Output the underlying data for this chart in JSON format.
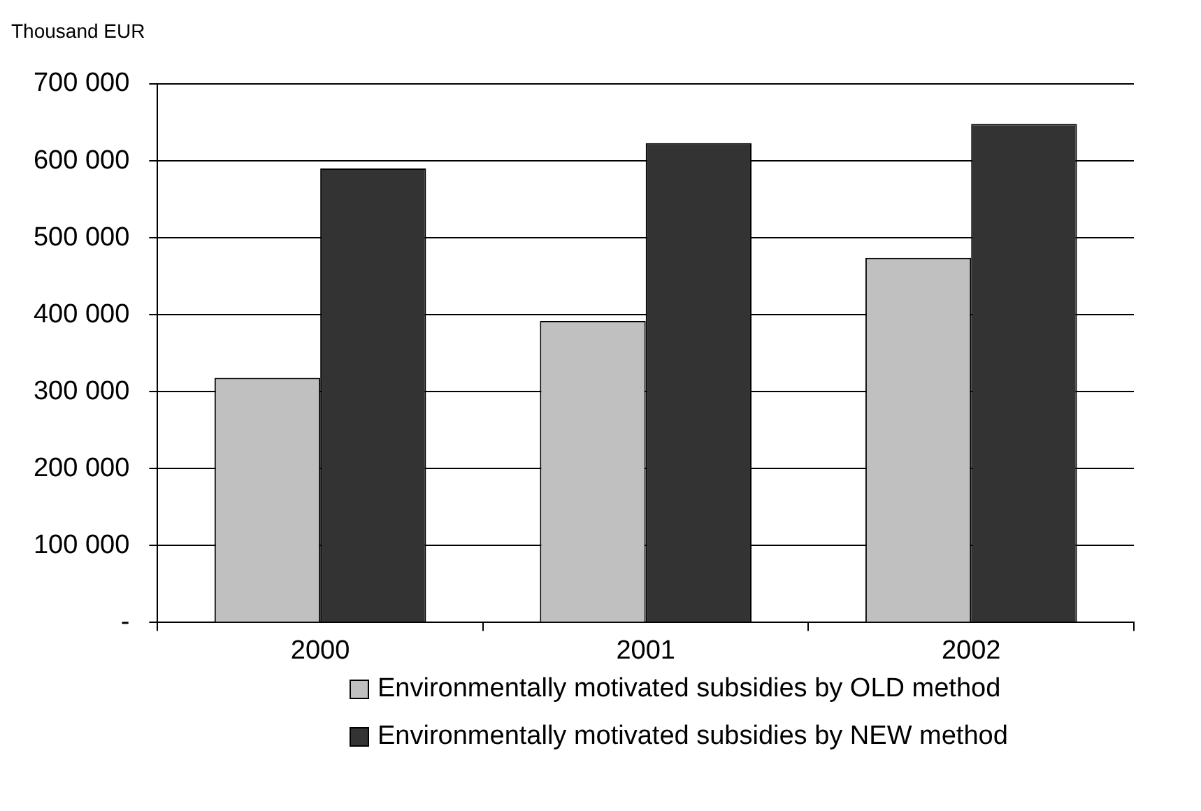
{
  "chart_data": {
    "type": "bar",
    "ylabel": "Thousand EUR",
    "categories": [
      "2000",
      "2001",
      "2002"
    ],
    "series": [
      {
        "name": "Environmentally motivated subsidies by OLD method",
        "color": "#c0c0c0",
        "values": [
          318000,
          392000,
          474000
        ]
      },
      {
        "name": "Environmentally motivated subsidies by NEW method",
        "color": "#333333",
        "values": [
          590000,
          623000,
          648000
        ]
      }
    ],
    "ylim": [
      0,
      700000
    ],
    "yticks": [
      {
        "value": 0,
        "label": "-"
      },
      {
        "value": 100000,
        "label": "100 000"
      },
      {
        "value": 200000,
        "label": "200 000"
      },
      {
        "value": 300000,
        "label": "300 000"
      },
      {
        "value": 400000,
        "label": "400 000"
      },
      {
        "value": 500000,
        "label": "500 000"
      },
      {
        "value": 600000,
        "label": "600 000"
      },
      {
        "value": 700000,
        "label": "700 000"
      }
    ],
    "grid": "y",
    "legend": "bottom"
  }
}
